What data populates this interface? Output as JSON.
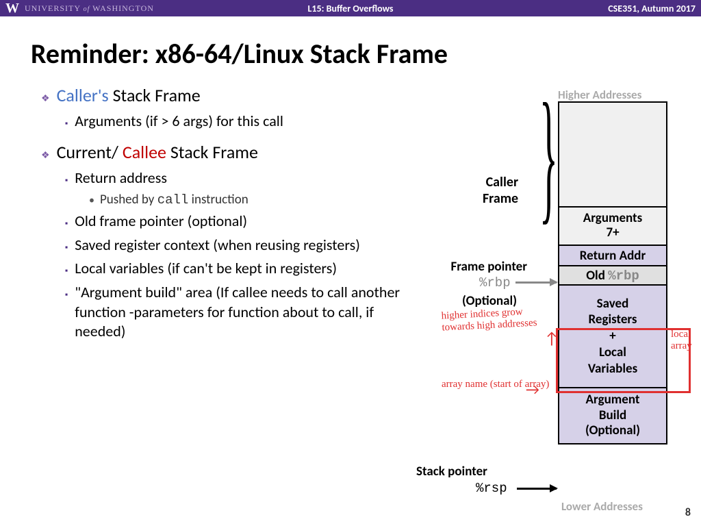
{
  "header": {
    "center": "L15:  Buffer Overflows",
    "right": "CSE351, Autumn 2017",
    "uw1": "UNIVERSITY",
    "uw2": "of",
    "uw3": "WASHINGTON"
  },
  "title": "Reminder:  x86-64/Linux Stack Frame",
  "bullets": {
    "l1a_pre": "Caller's",
    "l1a_post": " Stack Frame",
    "l2a": "Arguments (if > 6 args) for this call",
    "l1b_pre": "Current/ ",
    "l1b_mid": "Callee",
    "l1b_post": " Stack Frame",
    "l2b": "Return address",
    "l3a_pre": "Pushed by ",
    "l3a_code": "call",
    "l3a_post": " instruction",
    "l2c": "Old frame pointer (optional)",
    "l2d": "Saved register context (when reusing registers)",
    "l2e": "Local variables (if can't be kept in registers)",
    "l2f": "\"Argument build\" area (If callee needs to call another function -parameters for function about to call, if needed)"
  },
  "diagram": {
    "higher": "Higher Addresses",
    "lower": "Lower Addresses",
    "caller_label": "Caller Frame",
    "args": "Arguments 7+",
    "ret": "Return Addr",
    "old_pre": "Old ",
    "old_code": "%rbp",
    "saved": "Saved Registers + Local Variables",
    "argbuild": "Argument Build (Optional)",
    "fp": "Frame pointer",
    "rbp": "%rbp",
    "opt": "(Optional)",
    "sp": "Stack pointer",
    "rsp": "%rsp"
  },
  "hand": {
    "h1": "higher indices grow towards high addresses",
    "h2": "array name (start of array)",
    "h3": "local array"
  },
  "page": "8",
  "colors": {
    "purple": "#4b2e83",
    "lavender": "#d6d1e8",
    "red": "#e03030",
    "blue": "#4472c4",
    "darkred": "#c00000"
  }
}
